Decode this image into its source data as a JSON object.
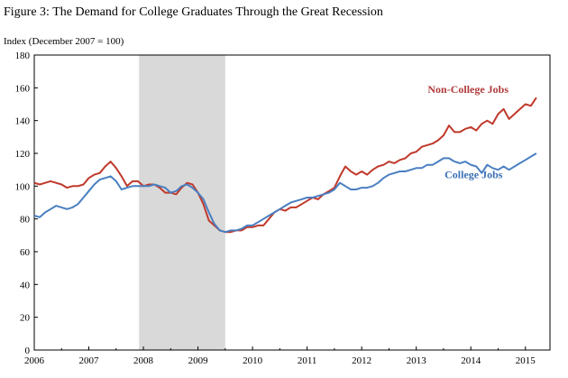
{
  "figure": {
    "title": "Figure 3: The Demand for College Graduates Through the Great Recession"
  },
  "chart_data": {
    "type": "line",
    "title": "Figure 3: The Demand for College Graduates Through the Great Recession",
    "ylabel": "Index (December 2007 = 100)",
    "xlabel": "",
    "ylim": [
      0,
      180
    ],
    "yticks": [
      0,
      20,
      40,
      60,
      80,
      100,
      120,
      140,
      160,
      180
    ],
    "xlim": [
      2006.0,
      2015.45
    ],
    "xticks": [
      "2006",
      "2007",
      "2008",
      "2009",
      "2010",
      "2011",
      "2012",
      "2013",
      "2014",
      "2015"
    ],
    "grid": false,
    "legend": "inline labels",
    "recession_band": {
      "start": 2007.92,
      "end": 2009.5,
      "color": "#d9d9d9"
    },
    "series": [
      {
        "name": "Non-College Jobs",
        "color": "#c0392b",
        "label_color": "#b03a3a",
        "x": [
          2006.0,
          2006.1,
          2006.2,
          2006.3,
          2006.4,
          2006.5,
          2006.6,
          2006.7,
          2006.8,
          2006.9,
          2007.0,
          2007.1,
          2007.2,
          2007.3,
          2007.4,
          2007.5,
          2007.6,
          2007.7,
          2007.8,
          2007.9,
          2008.0,
          2008.1,
          2008.2,
          2008.3,
          2008.4,
          2008.5,
          2008.6,
          2008.7,
          2008.8,
          2008.9,
          2009.0,
          2009.1,
          2009.2,
          2009.3,
          2009.4,
          2009.5,
          2009.6,
          2009.7,
          2009.8,
          2009.9,
          2010.0,
          2010.1,
          2010.2,
          2010.3,
          2010.4,
          2010.5,
          2010.6,
          2010.7,
          2010.8,
          2010.9,
          2011.0,
          2011.1,
          2011.2,
          2011.3,
          2011.4,
          2011.5,
          2011.6,
          2011.7,
          2011.8,
          2011.9,
          2012.0,
          2012.1,
          2012.2,
          2012.3,
          2012.4,
          2012.5,
          2012.6,
          2012.7,
          2012.8,
          2012.9,
          2013.0,
          2013.1,
          2013.2,
          2013.3,
          2013.4,
          2013.5,
          2013.6,
          2013.7,
          2013.8,
          2013.9,
          2014.0,
          2014.1,
          2014.2,
          2014.3,
          2014.4,
          2014.5,
          2014.6,
          2014.7,
          2014.8,
          2014.9,
          2015.0,
          2015.1,
          2015.2
        ],
        "values": [
          102,
          101,
          102,
          103,
          102,
          101,
          99,
          100,
          100,
          101,
          105,
          107,
          108,
          112,
          115,
          111,
          106,
          100,
          103,
          103,
          100,
          101,
          101,
          99,
          96,
          96,
          95,
          99,
          102,
          101,
          96,
          89,
          79,
          76,
          73,
          72,
          72,
          73,
          73,
          75,
          75,
          76,
          76,
          80,
          84,
          86,
          85,
          87,
          87,
          89,
          91,
          93,
          92,
          95,
          97,
          99,
          106,
          112,
          109,
          107,
          109,
          107,
          110,
          112,
          113,
          115,
          114,
          116,
          117,
          120,
          121,
          124,
          125,
          126,
          128,
          131,
          137,
          133,
          133,
          135,
          136,
          134,
          138,
          140,
          138,
          144,
          147,
          141,
          144,
          147,
          150,
          149,
          154
        ]
      },
      {
        "name": "College Jobs",
        "color": "#4a7fc1",
        "label_color": "#3a6fb4",
        "x": [
          2006.0,
          2006.1,
          2006.2,
          2006.3,
          2006.4,
          2006.5,
          2006.6,
          2006.7,
          2006.8,
          2006.9,
          2007.0,
          2007.1,
          2007.2,
          2007.3,
          2007.4,
          2007.5,
          2007.6,
          2007.7,
          2007.8,
          2007.9,
          2008.0,
          2008.1,
          2008.2,
          2008.3,
          2008.4,
          2008.5,
          2008.6,
          2008.7,
          2008.8,
          2008.9,
          2009.0,
          2009.1,
          2009.2,
          2009.3,
          2009.4,
          2009.5,
          2009.6,
          2009.7,
          2009.8,
          2009.9,
          2010.0,
          2010.1,
          2010.2,
          2010.3,
          2010.4,
          2010.5,
          2010.6,
          2010.7,
          2010.8,
          2010.9,
          2011.0,
          2011.1,
          2011.2,
          2011.3,
          2011.4,
          2011.5,
          2011.6,
          2011.7,
          2011.8,
          2011.9,
          2012.0,
          2012.1,
          2012.2,
          2012.3,
          2012.4,
          2012.5,
          2012.6,
          2012.7,
          2012.8,
          2012.9,
          2013.0,
          2013.1,
          2013.2,
          2013.3,
          2013.4,
          2013.5,
          2013.6,
          2013.7,
          2013.8,
          2013.9,
          2014.0,
          2014.1,
          2014.2,
          2014.3,
          2014.4,
          2014.5,
          2014.6,
          2014.7,
          2014.8,
          2014.9,
          2015.0,
          2015.1,
          2015.2
        ],
        "values": [
          82,
          81,
          84,
          86,
          88,
          87,
          86,
          87,
          89,
          93,
          97,
          101,
          104,
          105,
          106,
          103,
          98,
          99,
          100,
          100,
          100,
          100,
          101,
          100,
          99,
          96,
          97,
          100,
          101,
          99,
          96,
          92,
          84,
          77,
          73,
          72,
          73,
          73,
          74,
          76,
          76,
          78,
          80,
          82,
          84,
          86,
          88,
          90,
          91,
          92,
          93,
          93,
          94,
          95,
          96,
          98,
          102,
          100,
          98,
          98,
          99,
          99,
          100,
          102,
          105,
          107,
          108,
          109,
          109,
          110,
          111,
          111,
          113,
          113,
          115,
          117,
          117,
          115,
          114,
          115,
          113,
          112,
          108,
          113,
          111,
          110,
          112,
          110,
          112,
          114,
          116,
          118,
          120
        ]
      }
    ],
    "annotations": [
      {
        "text": "Non-College Jobs",
        "series": "Non-College Jobs",
        "x": 2013.95,
        "y": 157
      },
      {
        "text": "College Jobs",
        "series": "College Jobs",
        "x": 2014.05,
        "y": 105
      }
    ]
  }
}
